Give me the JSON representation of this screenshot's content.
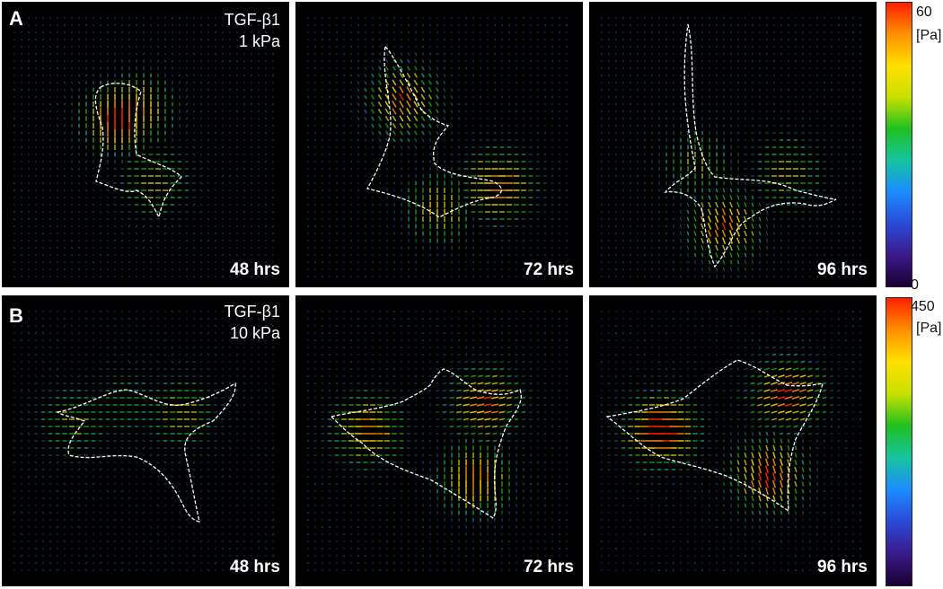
{
  "rows": [
    {
      "label": "A",
      "condition_line1": "TGF-β1",
      "condition_line2": "1 kPa",
      "times": [
        "48 hrs",
        "72 hrs",
        "96 hrs"
      ],
      "colorbar": {
        "max": "60",
        "unit": "[Pa]",
        "min": "0"
      }
    },
    {
      "label": "B",
      "condition_line1": "TGF-β1",
      "condition_line2": "10 kPa",
      "times": [
        "48 hrs",
        "72 hrs",
        "96 hrs"
      ],
      "colorbar": {
        "max": "450",
        "unit": "[Pa]"
      }
    }
  ],
  "colors": {
    "background": "#000000",
    "outline": "#ffffff",
    "colormap": [
      "#1a0033",
      "#3a1a8a",
      "#2a4ad8",
      "#1c8cff",
      "#16c4a0",
      "#20c020",
      "#c8e000",
      "#ffe000",
      "#ff9000",
      "#ff2000"
    ]
  }
}
